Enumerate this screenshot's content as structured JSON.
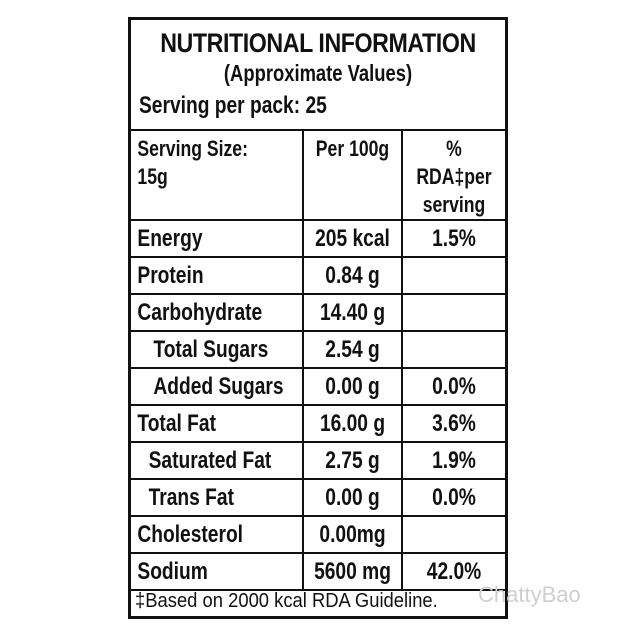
{
  "label": {
    "title": "NUTRITIONAL INFORMATION",
    "subtitle": "(Approximate Values)",
    "serving_per_pack": "Serving per pack: 25",
    "columns": {
      "serving_size": "Serving Size: 15g",
      "per_100g": "Per 100g",
      "rda": "% RDA‡per serving"
    },
    "rows": [
      {
        "name": "Energy",
        "per_100g": "205 kcal",
        "rda": "1.5%"
      },
      {
        "name": "Protein",
        "per_100g": "0.84 g",
        "rda": ""
      },
      {
        "name": "Carbohydrate",
        "per_100g": "14.40 g",
        "rda": ""
      },
      {
        "name": "Total Sugars",
        "per_100g": "2.54 g",
        "rda": ""
      },
      {
        "name": "Added Sugars",
        "per_100g": "0.00 g",
        "rda": "0.0%"
      },
      {
        "name": "Total Fat",
        "per_100g": "16.00 g",
        "rda": "3.6%"
      },
      {
        "name": "Saturated Fat",
        "per_100g": "2.75 g",
        "rda": "1.9%"
      },
      {
        "name": "Trans Fat",
        "per_100g": "0.00 g",
        "rda": "0.0%"
      },
      {
        "name": "Cholesterol",
        "per_100g": "0.00mg",
        "rda": ""
      },
      {
        "name": "Sodium",
        "per_100g": "5600 mg",
        "rda": "42.0%"
      }
    ],
    "footnote": "‡Based on 2000 kcal RDA Guideline."
  },
  "watermark": "ChattyBao"
}
